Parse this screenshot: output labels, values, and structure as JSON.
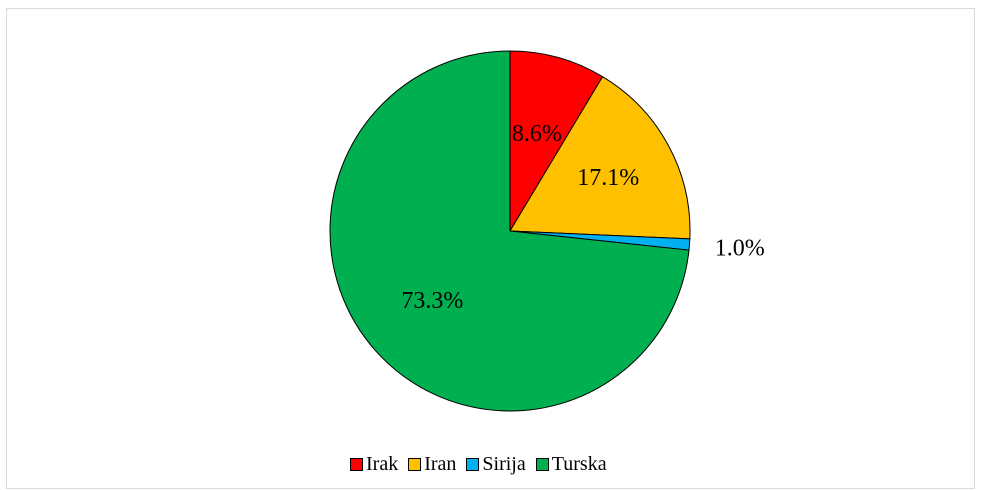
{
  "chart_data": {
    "type": "pie",
    "title": "",
    "categories": [
      "Irak",
      "Iran",
      "Sirija",
      "Turska"
    ],
    "values": [
      8.6,
      17.1,
      1.0,
      73.3
    ],
    "labels": [
      "8.6%",
      "17.1%",
      "1.0%",
      "73.3%"
    ],
    "colors": [
      "#ff0000",
      "#ffc000",
      "#00b0f0",
      "#00b050"
    ],
    "start_angle": "12 o'clock",
    "direction": "clockwise",
    "legend_position": "bottom"
  }
}
